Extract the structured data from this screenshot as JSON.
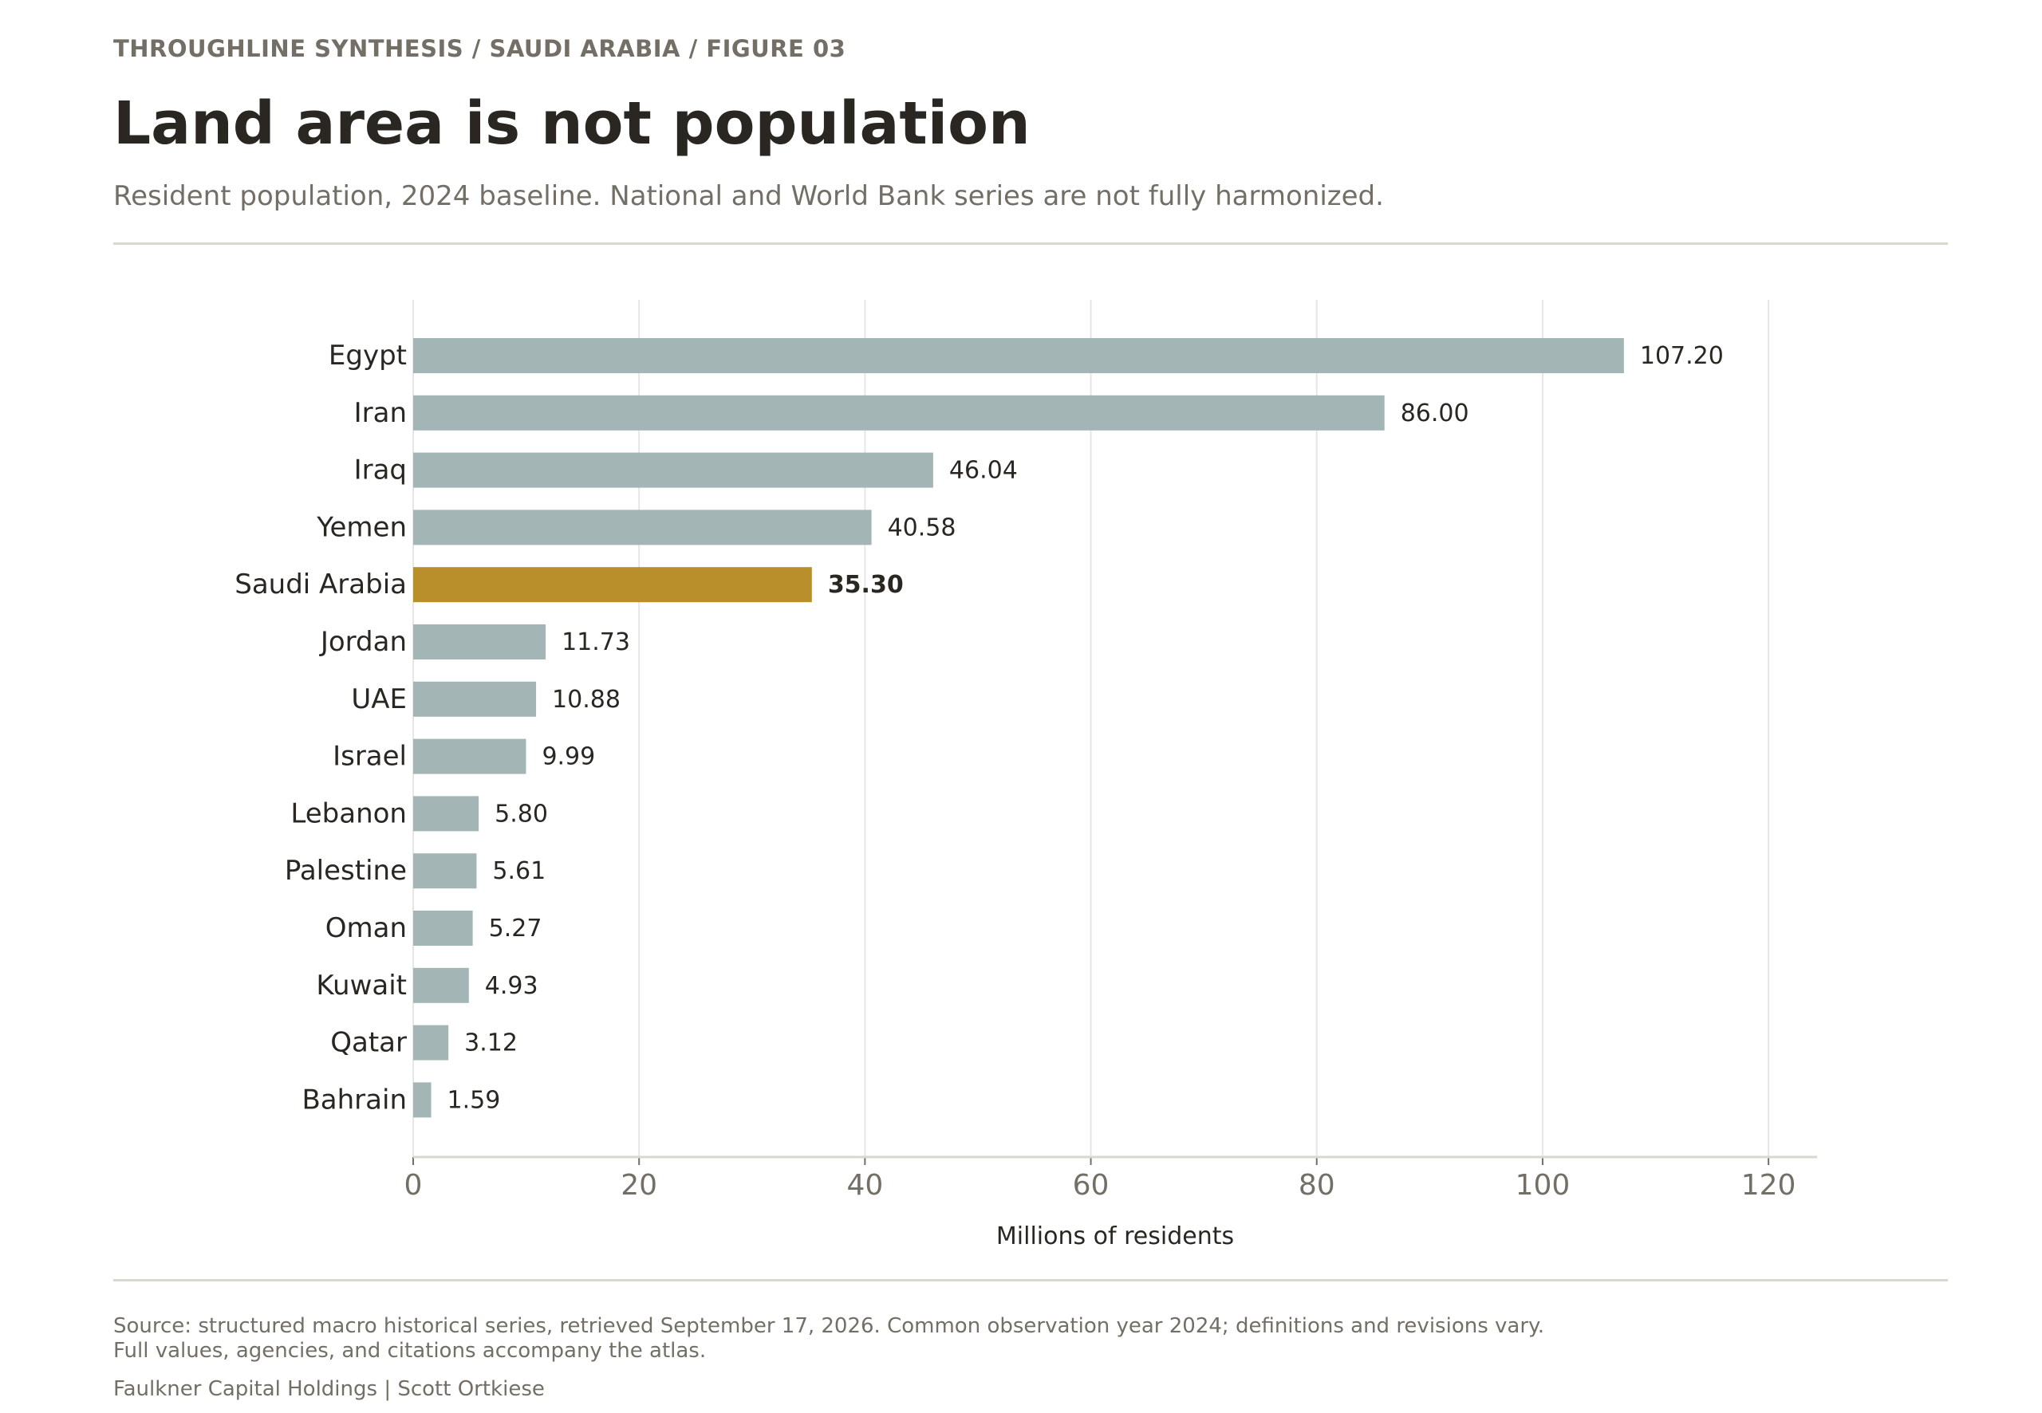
{
  "header": {
    "kicker": "THROUGHLINE SYNTHESIS / SAUDI ARABIA / FIGURE 03",
    "title": "Land area is not population",
    "subtitle": "Resident population, 2024 baseline. National and World Bank series are not fully harmonized."
  },
  "footer": {
    "source_line1": "Source: structured macro historical series, retrieved September 17, 2026. Common observation year 2024; definitions and revisions vary.",
    "source_line2": "Full values, agencies, and citations accompany the atlas.",
    "credit": "Faulkner Capital Holdings | Scott Ortkiese"
  },
  "colors": {
    "bar": "#a4b5b5",
    "highlight": "#b88f2b",
    "text": "#2a2723",
    "muted": "#736f66",
    "grid": "#e6e6e6",
    "axis": "#d9d8cf"
  },
  "chart_data": {
    "type": "bar",
    "orientation": "horizontal",
    "categories": [
      "Egypt",
      "Iran",
      "Iraq",
      "Yemen",
      "Saudi Arabia",
      "Jordan",
      "UAE",
      "Israel",
      "Lebanon",
      "Palestine",
      "Oman",
      "Kuwait",
      "Qatar",
      "Bahrain"
    ],
    "values": [
      107.2,
      86.0,
      46.04,
      40.58,
      35.3,
      11.73,
      10.88,
      9.99,
      5.8,
      5.61,
      5.27,
      4.93,
      3.12,
      1.59
    ],
    "value_labels": [
      "107.20",
      "86.00",
      "46.04",
      "40.58",
      "35.30",
      "11.73",
      "10.88",
      "9.99",
      "5.80",
      "5.61",
      "5.27",
      "4.93",
      "3.12",
      "1.59"
    ],
    "highlight": "Saudi Arabia",
    "xlabel": "Millions of residents",
    "ylabel": "",
    "xlim": [
      0,
      124.3
    ],
    "xticks": [
      0,
      20,
      40,
      60,
      80,
      100,
      120
    ],
    "grid": "vertical",
    "legend": "none"
  }
}
